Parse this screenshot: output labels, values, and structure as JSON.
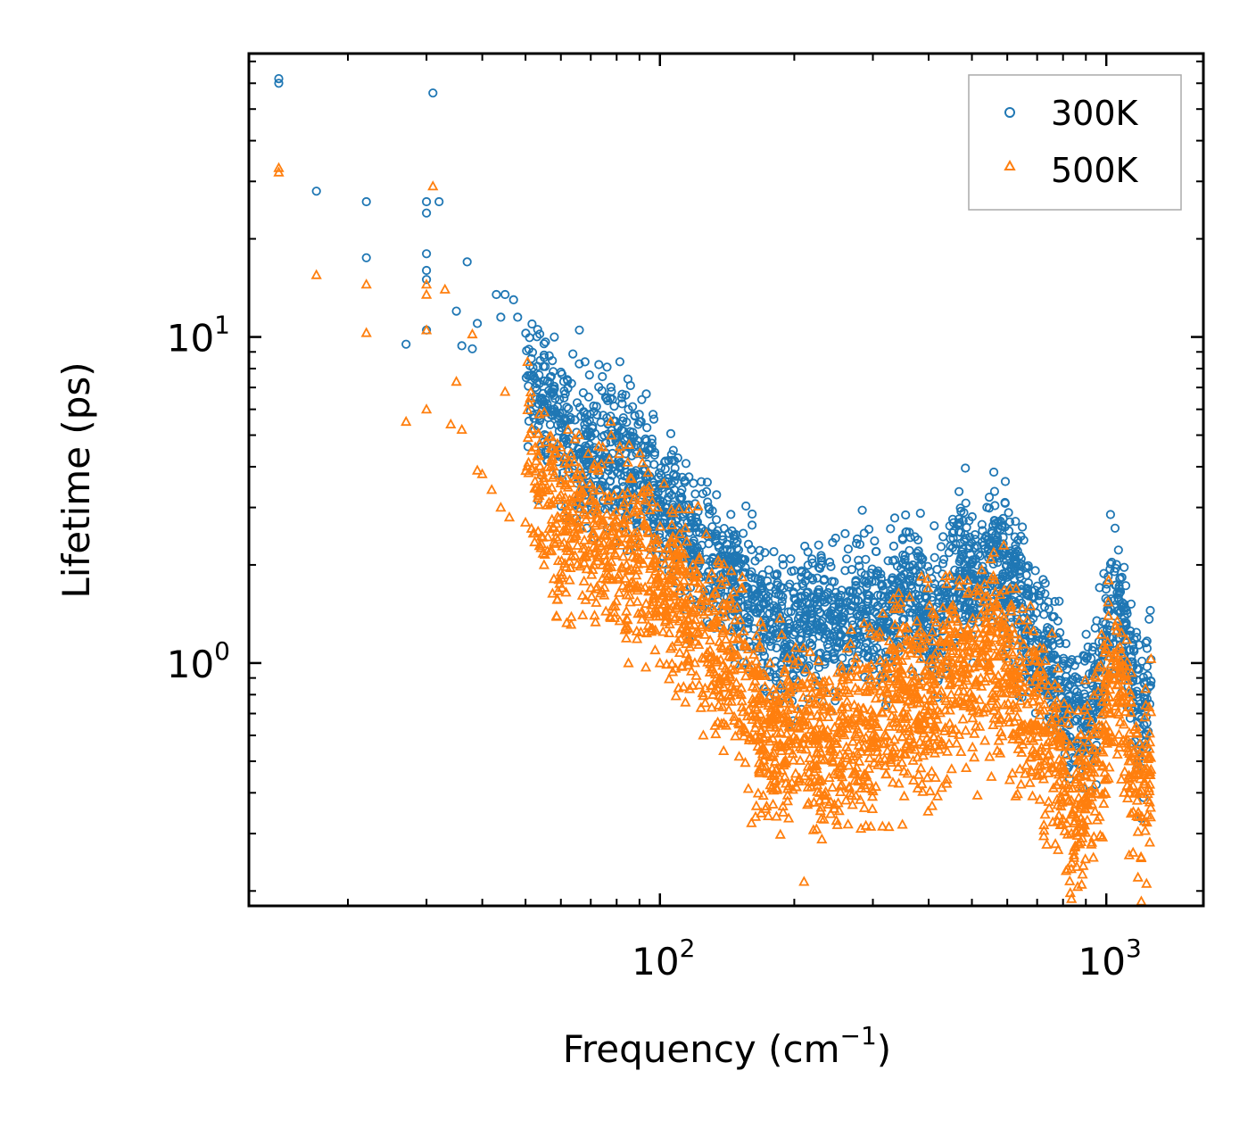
{
  "chart_data": {
    "type": "scatter",
    "title": "",
    "xlabel": "Frequency (cm",
    "xlabel_sup": "−1",
    "xlabel_close": ")",
    "ylabel": "Lifetime (ps)",
    "xscale": "log",
    "yscale": "log",
    "xlim": [
      12,
      1650
    ],
    "ylim": [
      0.18,
      74
    ],
    "x_ticks": [
      {
        "value": 100,
        "base": "10",
        "exp": "2"
      },
      {
        "value": 1000,
        "base": "10",
        "exp": "3"
      }
    ],
    "y_ticks": [
      {
        "value": 1,
        "base": "10",
        "exp": "0"
      },
      {
        "value": 10,
        "base": "10",
        "exp": "1"
      }
    ],
    "legend": {
      "placement": "top-right"
    },
    "colors": {
      "300K": "#1f77b4",
      "500K": "#ff7f0e"
    },
    "series": [
      {
        "name": "300K",
        "marker": "circle",
        "color": "#1f77b4",
        "trend": [
          [
            14,
            58
          ],
          [
            17,
            28
          ],
          [
            22,
            26
          ],
          [
            30,
            26
          ],
          [
            33,
            26
          ],
          [
            40,
            13
          ],
          [
            46,
            9
          ],
          [
            50,
            8
          ],
          [
            55,
            6.3
          ],
          [
            60,
            5.2
          ],
          [
            70,
            4.3
          ],
          [
            80,
            4.0
          ],
          [
            90,
            3.8
          ],
          [
            100,
            3.3
          ],
          [
            110,
            2.8
          ],
          [
            120,
            2.3
          ],
          [
            135,
            1.9
          ],
          [
            150,
            1.7
          ],
          [
            165,
            1.5
          ],
          [
            180,
            1.25
          ],
          [
            200,
            1.22
          ],
          [
            215,
            1.35
          ],
          [
            240,
            1.3
          ],
          [
            270,
            1.4
          ],
          [
            290,
            1.5
          ],
          [
            320,
            1.3
          ],
          [
            350,
            1.7
          ],
          [
            380,
            1.6
          ],
          [
            420,
            1.3
          ],
          [
            460,
            2.0
          ],
          [
            490,
            1.9
          ],
          [
            520,
            1.75
          ],
          [
            560,
            2.3
          ],
          [
            600,
            1.9
          ],
          [
            650,
            1.4
          ],
          [
            700,
            1.15
          ],
          [
            750,
            1.0
          ],
          [
            800,
            0.8
          ],
          [
            850,
            0.62
          ],
          [
            900,
            0.72
          ],
          [
            950,
            0.8
          ],
          [
            1000,
            1.3
          ],
          [
            1050,
            1.6
          ],
          [
            1100,
            1.2
          ],
          [
            1150,
            0.85
          ],
          [
            1200,
            0.6
          ],
          [
            1250,
            0.9
          ]
        ],
        "scatter_frac": 0.22,
        "points": [
          [
            14,
            62
          ],
          [
            14,
            60
          ],
          [
            31,
            56
          ],
          [
            17,
            28
          ],
          [
            22,
            26
          ],
          [
            30,
            26
          ],
          [
            32,
            26
          ],
          [
            30,
            24
          ],
          [
            22,
            17.5
          ],
          [
            30,
            18
          ],
          [
            30,
            16
          ],
          [
            30,
            15
          ],
          [
            37,
            17
          ],
          [
            43,
            13.5
          ],
          [
            45,
            13.5
          ],
          [
            47,
            13
          ],
          [
            35,
            12
          ],
          [
            44,
            11.5
          ],
          [
            48,
            11.5
          ],
          [
            39,
            11
          ],
          [
            36,
            9.4
          ],
          [
            38,
            9.2
          ],
          [
            27,
            9.5
          ],
          [
            30,
            10.5
          ],
          [
            58,
            10
          ],
          [
            66,
            10.5
          ],
          [
            55,
            8.8
          ],
          [
            60,
            7.8
          ],
          [
            62,
            7.4
          ],
          [
            90,
            5.5
          ],
          [
            85,
            6.0
          ],
          [
            112,
            3.4
          ],
          [
            120,
            3.3
          ],
          [
            230,
            2.1
          ],
          [
            230,
            2.0
          ]
        ]
      },
      {
        "name": "500K",
        "marker": "triangle",
        "color": "#ff7f0e",
        "trend": [
          [
            14,
            34
          ],
          [
            17,
            15.5
          ],
          [
            22,
            14.5
          ],
          [
            30,
            14
          ],
          [
            33,
            14
          ],
          [
            38,
            11
          ],
          [
            42,
            7.5
          ],
          [
            46,
            5.8
          ],
          [
            50,
            4.5
          ],
          [
            55,
            3.5
          ],
          [
            60,
            2.8
          ],
          [
            70,
            2.4
          ],
          [
            80,
            2.3
          ],
          [
            90,
            2.2
          ],
          [
            100,
            1.8
          ],
          [
            110,
            1.5
          ],
          [
            120,
            1.3
          ],
          [
            135,
            1.05
          ],
          [
            150,
            0.95
          ],
          [
            165,
            0.7
          ],
          [
            180,
            0.55
          ],
          [
            200,
            0.62
          ],
          [
            215,
            0.58
          ],
          [
            240,
            0.55
          ],
          [
            270,
            0.62
          ],
          [
            290,
            0.68
          ],
          [
            320,
            0.7
          ],
          [
            350,
            0.78
          ],
          [
            380,
            0.82
          ],
          [
            420,
            0.75
          ],
          [
            460,
            1.1
          ],
          [
            490,
            1.0
          ],
          [
            520,
            0.95
          ],
          [
            560,
            1.15
          ],
          [
            600,
            0.95
          ],
          [
            650,
            0.78
          ],
          [
            700,
            0.65
          ],
          [
            750,
            0.58
          ],
          [
            800,
            0.45
          ],
          [
            850,
            0.33
          ],
          [
            900,
            0.42
          ],
          [
            950,
            0.5
          ],
          [
            1000,
            0.75
          ],
          [
            1050,
            0.95
          ],
          [
            1100,
            0.65
          ],
          [
            1150,
            0.5
          ],
          [
            1200,
            0.38
          ],
          [
            1250,
            0.48
          ]
        ],
        "scatter_frac": 0.28,
        "points": [
          [
            14,
            33
          ],
          [
            14,
            32
          ],
          [
            31,
            29
          ],
          [
            17,
            15.5
          ],
          [
            22,
            14.5
          ],
          [
            30,
            14.5
          ],
          [
            30,
            13.5
          ],
          [
            33,
            14
          ],
          [
            22,
            10.3
          ],
          [
            30,
            10.5
          ],
          [
            38,
            10.2
          ],
          [
            35,
            7.3
          ],
          [
            45,
            6.8
          ],
          [
            27,
            5.5
          ],
          [
            30,
            6.0
          ],
          [
            34,
            5.4
          ],
          [
            36,
            5.2
          ],
          [
            39,
            3.9
          ],
          [
            40,
            3.8
          ],
          [
            42,
            3.4
          ],
          [
            44,
            3.0
          ],
          [
            46,
            2.8
          ],
          [
            50,
            2.7
          ],
          [
            52,
            2.5
          ],
          [
            55,
            2.0
          ],
          [
            60,
            1.9
          ],
          [
            70,
            1.7
          ],
          [
            85,
            1.0
          ],
          [
            93,
            0.97
          ],
          [
            100,
            1.0
          ],
          [
            170,
            0.55
          ],
          [
            180,
            0.53
          ]
        ]
      }
    ]
  }
}
